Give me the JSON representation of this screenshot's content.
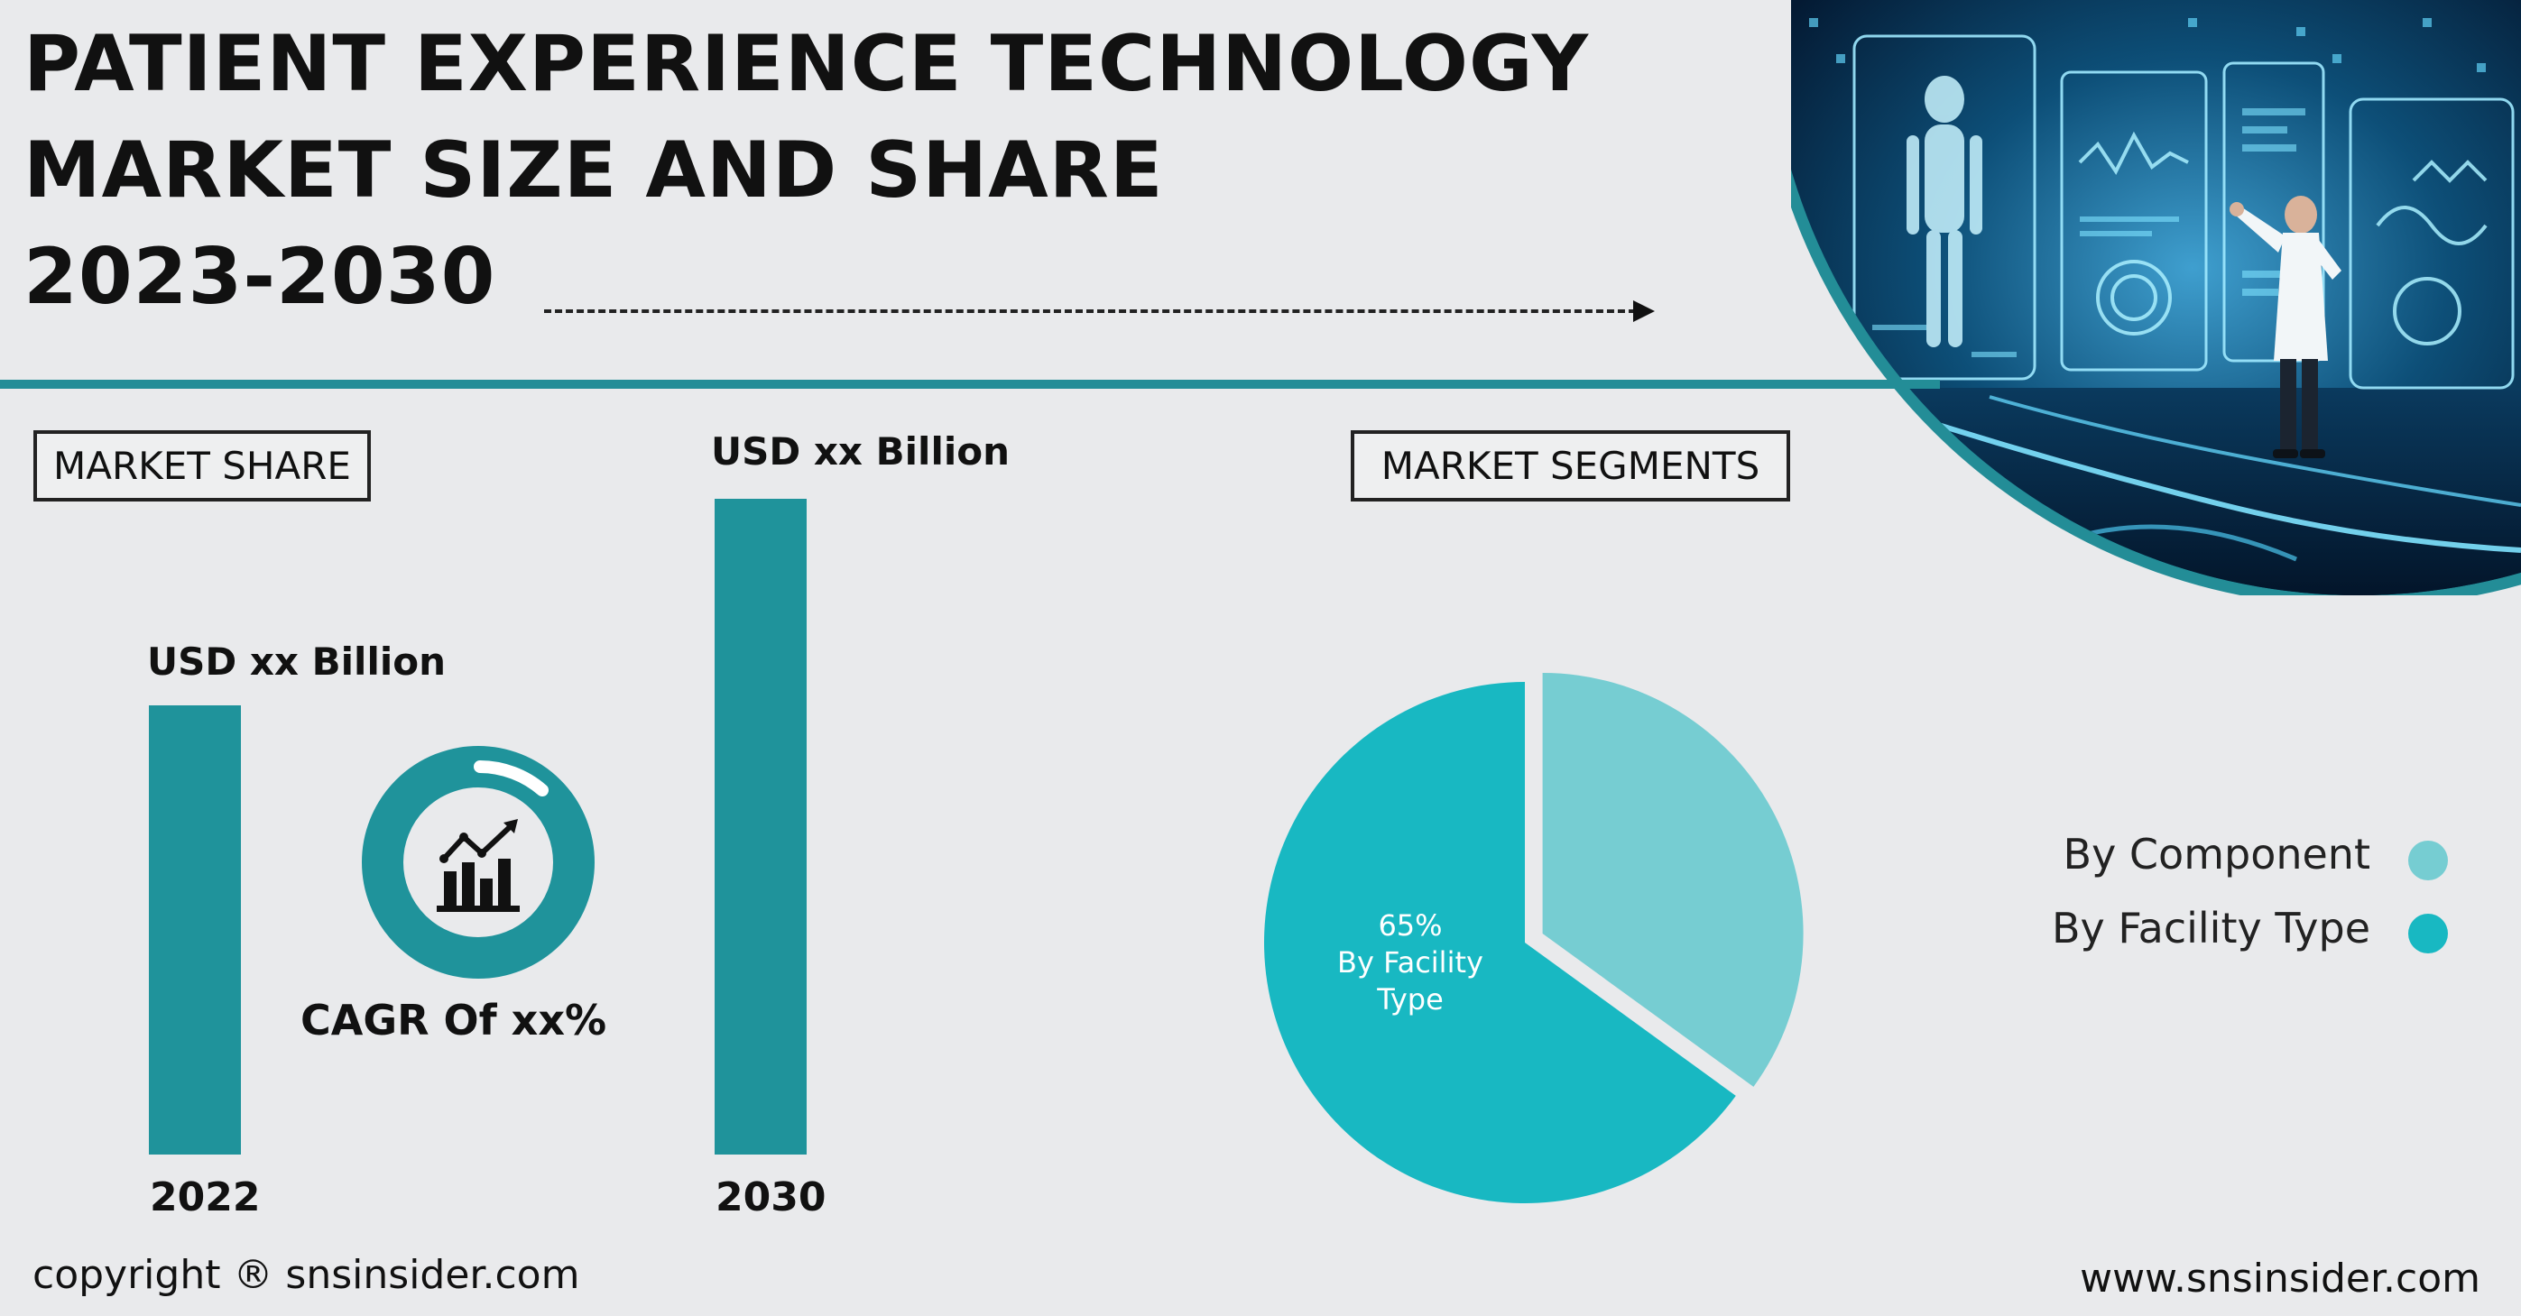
{
  "header": {
    "title_line1": "PATIENT EXPERIENCE TECHNOLOGY",
    "title_line2": "MARKET SIZE AND SHARE",
    "title_line3": "2023-2030"
  },
  "market_share": {
    "box_label": "MARKET SHARE",
    "cagr_label": "CAGR Of xx%"
  },
  "market_segments": {
    "box_label": "MARKET SEGMENTS",
    "pie_label_pct": "65%",
    "pie_label_line1": "By Facility",
    "pie_label_line2": "Type"
  },
  "footer": {
    "copyright": "copyright ® snsinsider.com",
    "website": "www.snsinsider.com"
  },
  "colors": {
    "teal_dark": "#1f939b",
    "teal_pie": "#18b8c2",
    "teal_light": "#76cdd2",
    "background": "#e9eaec"
  },
  "chart_data": [
    {
      "type": "bar",
      "categories": [
        "2022",
        "2030"
      ],
      "value_labels": [
        "USD xx Billion",
        "USD xx Billion"
      ],
      "values": [
        50,
        73
      ]
    },
    {
      "type": "pie",
      "labels": [
        "By Component",
        "By Facility Type"
      ],
      "values": [
        35,
        65
      ],
      "colors": [
        "#76cdd2",
        "#18b8c2"
      ],
      "legend": "right"
    }
  ]
}
